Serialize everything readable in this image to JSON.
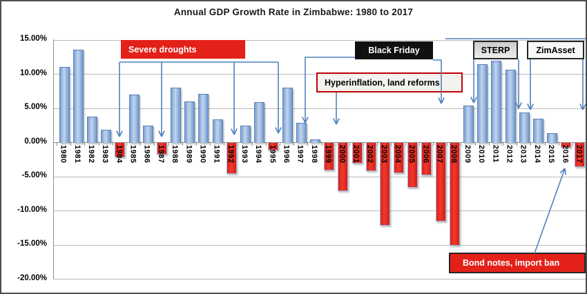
{
  "title": "Annual GDP Growth Rate in Zimbabwe: 1980 to 2017",
  "chart_data": {
    "type": "bar",
    "title": "Annual GDP Growth Rate in Zimbabwe: 1980 to 2017",
    "xlabel": "",
    "ylabel": "",
    "ylim": [
      -20,
      15
    ],
    "ytick_step": 5,
    "ytick_labels": [
      "15.00%",
      "10.00%",
      "5.00%",
      "0.00%",
      "-5.00%",
      "-10.00%",
      "-15.00%",
      "-20.00%"
    ],
    "grid": true,
    "legend": false,
    "bar_colors": {
      "positive": "#9dbce6",
      "negative": "#e32119"
    },
    "categories": [
      "1980",
      "1981",
      "1982",
      "1983",
      "1984",
      "1985",
      "1986",
      "1987",
      "1988",
      "1989",
      "1990",
      "1991",
      "1992",
      "1993",
      "1994",
      "1995",
      "1996",
      "1997",
      "1998",
      "1999",
      "2000",
      "2001",
      "2002",
      "2003",
      "2004",
      "2005",
      "2006",
      "2007",
      "2008",
      "2009",
      "2010",
      "2011",
      "2012",
      "2013",
      "2014",
      "2015",
      "2016",
      "2017"
    ],
    "values": [
      11.0,
      13.5,
      3.7,
      1.8,
      -2.0,
      7.0,
      2.4,
      -1.6,
      8.0,
      6.0,
      7.1,
      3.3,
      -4.4,
      2.4,
      5.9,
      -1.0,
      8.0,
      2.8,
      0.4,
      -3.9,
      -7.0,
      -2.9,
      -4.0,
      -12.0,
      -4.3,
      -6.5,
      -4.6,
      -11.4,
      -14.9,
      5.4,
      11.4,
      11.9,
      10.6,
      4.3,
      3.4,
      1.3,
      -0.6,
      -3.4
    ],
    "annotations": [
      {
        "label": "Severe droughts",
        "fill": "#e32119",
        "text_color": "#ffffff",
        "points_to": [
          "1984",
          "1987",
          "1992",
          "1995"
        ]
      },
      {
        "label": "Black Friday",
        "fill": "#101010",
        "text_color": "#ffffff",
        "points_to": [
          "1997"
        ]
      },
      {
        "label": "Hyperinflation, land reforms",
        "fill": "#f4f2ef",
        "border": "#c00000",
        "text_color": "#000000",
        "points_to": [
          "2000",
          "2007"
        ]
      },
      {
        "label": "STERP",
        "fill": "#d9d9d9",
        "border": "#262626",
        "text_color": "#000000",
        "points_to": [
          "2009",
          "2013"
        ]
      },
      {
        "label": "ZimAsset",
        "fill": "#f7f7f7",
        "border": "#262626",
        "text_color": "#000000",
        "points_to": [
          "2014",
          "2017"
        ]
      },
      {
        "label": "Bond notes, import ban",
        "fill": "#e32119",
        "border": "#262626",
        "text_color": "#ffffff",
        "points_to": [
          "2016"
        ]
      }
    ]
  }
}
